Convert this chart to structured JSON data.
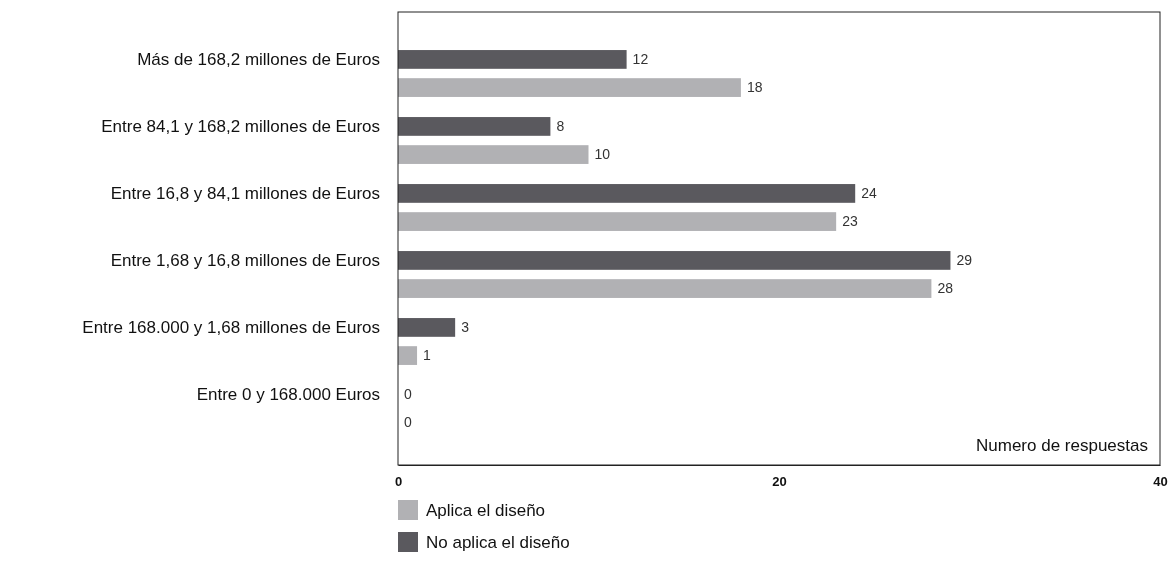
{
  "chart_data": {
    "type": "bar",
    "orientation": "horizontal",
    "xlabel": "Numero de respuestas",
    "categories": [
      "Más de 168,2 millones de Euros",
      "Entre 84,1 y 168,2 millones de Euros",
      "Entre 16,8 y 84,1 millones de Euros",
      "Entre 1,68 y 16,8 millones de Euros",
      "Entre 168.000 y 1,68 millones de Euros",
      "Entre 0 y 168.000 Euros"
    ],
    "series": [
      {
        "name": "No aplica el diseño",
        "color": "#5a595e",
        "values": [
          12,
          8,
          24,
          29,
          3,
          0
        ]
      },
      {
        "name": "Aplica el diseño",
        "color": "#b1b1b4",
        "values": [
          18,
          10,
          23,
          28,
          1,
          0
        ]
      }
    ],
    "xlim": [
      0,
      40
    ],
    "xticks": [
      0,
      20,
      40
    ],
    "data_labels": true,
    "grid": false,
    "legend": "bottom left"
  }
}
